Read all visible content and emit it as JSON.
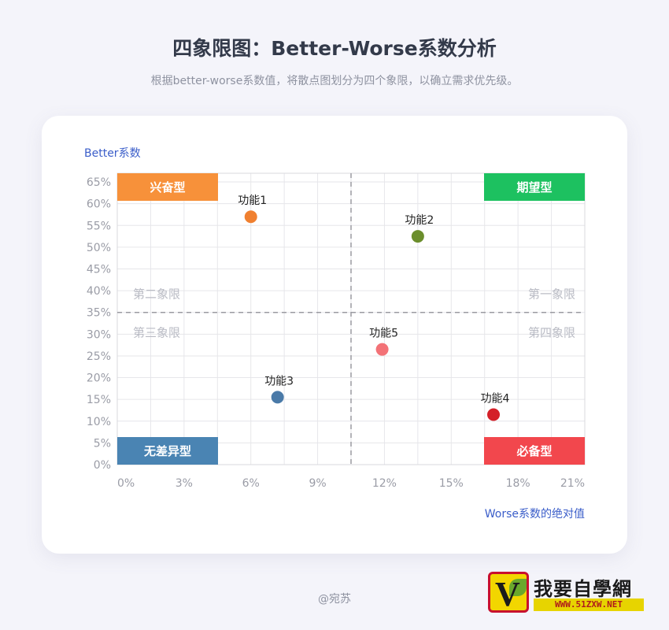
{
  "header": {
    "title": "四象限图：Better-Worse系数分析",
    "subtitle": "根据better-worse系数值，将散点图划分为四个象限，以确立需求优先级。"
  },
  "footer": {
    "credit": "@宛苏"
  },
  "watermark": {
    "name": "我要自學網",
    "url": "WWW.51ZXW.NET"
  },
  "colors": {
    "accent": "#3a5dc9",
    "quadrant_label": "#b9bbc4",
    "tick": "#9a9ca6",
    "point_label": "#222222"
  },
  "chart_data": {
    "type": "scatter",
    "title": "",
    "xlabel": "Worse系数的绝对值",
    "ylabel": "Better系数",
    "xlim": [
      0,
      21
    ],
    "ylim": [
      0,
      67
    ],
    "x_ticks": [
      "0%",
      "3%",
      "6%",
      "9%",
      "12%",
      "15%",
      "18%",
      "21%"
    ],
    "x_tick_values": [
      0,
      3,
      6,
      9,
      12,
      15,
      18,
      21
    ],
    "y_ticks": [
      "0%",
      "5%",
      "10%",
      "15%",
      "20%",
      "25%",
      "30%",
      "35%",
      "40%",
      "45%",
      "50%",
      "55%",
      "60%",
      "65%"
    ],
    "y_tick_values": [
      0,
      5,
      10,
      15,
      20,
      25,
      30,
      35,
      40,
      45,
      50,
      55,
      60,
      65
    ],
    "grid": true,
    "dividers": {
      "x": 10.5,
      "y": 35
    },
    "quadrant_labels": [
      {
        "text": "第一象限",
        "position": "top-right"
      },
      {
        "text": "第二象限",
        "position": "top-left"
      },
      {
        "text": "第三象限",
        "position": "bottom-left"
      },
      {
        "text": "第四象限",
        "position": "bottom-right"
      }
    ],
    "corner_tags": [
      {
        "text": "兴奋型",
        "position": "top-left",
        "color": "#f7913a"
      },
      {
        "text": "期望型",
        "position": "top-right",
        "color": "#1dc160"
      },
      {
        "text": "无差异型",
        "position": "bottom-left",
        "color": "#4a84b3"
      },
      {
        "text": "必备型",
        "position": "bottom-right",
        "color": "#f2474d"
      }
    ],
    "points": [
      {
        "label": "功能1",
        "x": 6.0,
        "y": 57,
        "color": "#f08030"
      },
      {
        "label": "功能2",
        "x": 13.5,
        "y": 52.5,
        "color": "#6b8e2c"
      },
      {
        "label": "功能3",
        "x": 7.2,
        "y": 15.5,
        "color": "#4a7aa8"
      },
      {
        "label": "功能4",
        "x": 16.9,
        "y": 11.5,
        "color": "#d42028"
      },
      {
        "label": "功能5",
        "x": 11.9,
        "y": 26.5,
        "color": "#f37277"
      }
    ]
  }
}
